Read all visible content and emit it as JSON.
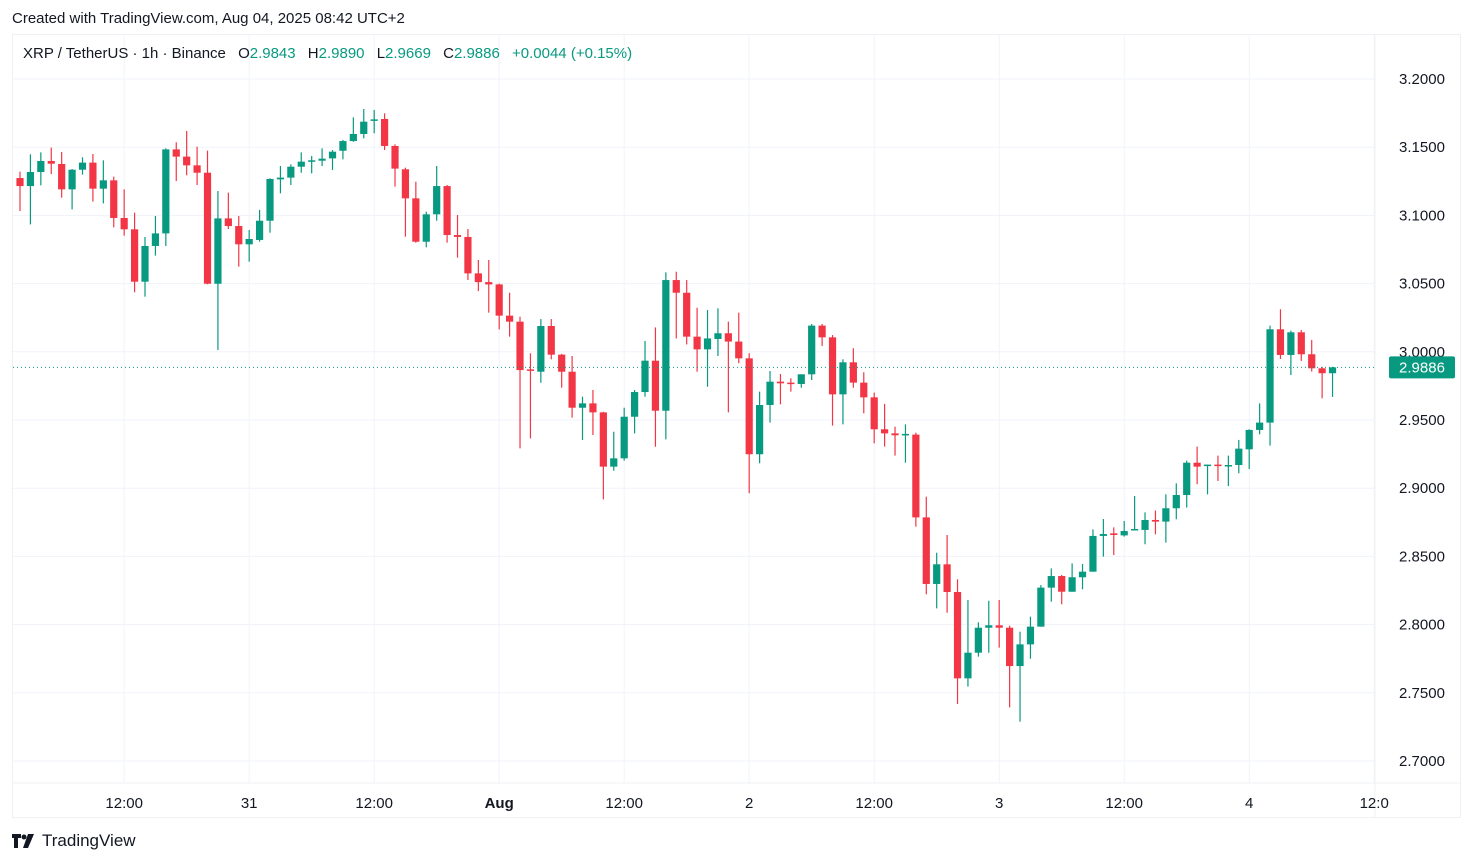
{
  "header": {
    "created_text": "Created with TradingView.com, Aug 04, 2025 08:42 UTC+2"
  },
  "legend": {
    "symbol": "XRP / TetherUS · 1h · Binance",
    "o_label": "O",
    "o": "2.9843",
    "h_label": "H",
    "h": "2.9890",
    "l_label": "L",
    "l": "2.9669",
    "c_label": "C",
    "c": "2.9886",
    "change": "+0.0044 (+0.15%)"
  },
  "footer": {
    "brand": "TradingView"
  },
  "colors": {
    "up": "#089981",
    "down": "#F23645",
    "grid": "#f0f3fa",
    "text": "#131722"
  },
  "chart_data": {
    "type": "candlestick",
    "interval": "1h",
    "ylim": [
      2.68,
      3.215
    ],
    "y_ticks": [
      "3.2000",
      "3.1500",
      "3.1000",
      "3.0500",
      "3.0000",
      "2.9500",
      "2.9000",
      "2.8500",
      "2.8000",
      "2.7500",
      "2.7000"
    ],
    "x_ticks": [
      {
        "t": "07-30 12:00",
        "label": "12:00"
      },
      {
        "t": "07-31 00:00",
        "label": "31"
      },
      {
        "t": "07-31 12:00",
        "label": "12:00"
      },
      {
        "t": "08-01 00:00",
        "label": "Aug"
      },
      {
        "t": "08-01 12:00",
        "label": "12:00"
      },
      {
        "t": "08-02 00:00",
        "label": "2"
      },
      {
        "t": "08-02 12:00",
        "label": "12:00"
      },
      {
        "t": "08-03 00:00",
        "label": "3"
      },
      {
        "t": "08-03 12:00",
        "label": "12:00"
      },
      {
        "t": "08-04 00:00",
        "label": "4"
      },
      {
        "t": "08-04 12:00",
        "label": "12:0"
      }
    ],
    "last_price": "2.9886",
    "grid": true,
    "candles_format": [
      "time",
      "open",
      "high",
      "low",
      "close"
    ],
    "candles": [
      [
        "07-30 02:00",
        3.1274,
        3.1321,
        3.1032,
        3.1215
      ],
      [
        "07-30 03:00",
        3.1215,
        3.1448,
        3.0934,
        3.1318
      ],
      [
        "07-30 04:00",
        3.1318,
        3.1462,
        3.122,
        3.1399
      ],
      [
        "07-30 05:00",
        3.1399,
        3.1497,
        3.1303,
        3.1379
      ],
      [
        "07-30 06:00",
        3.1377,
        3.1465,
        3.113,
        3.1191
      ],
      [
        "07-30 07:00",
        3.1191,
        3.134,
        3.1044,
        3.1335
      ],
      [
        "07-30 08:00",
        3.1335,
        3.1426,
        3.1299,
        3.1387
      ],
      [
        "07-30 09:00",
        3.1387,
        3.145,
        3.1101,
        3.1196
      ],
      [
        "07-30 10:00",
        3.1196,
        3.1404,
        3.1088,
        3.1257
      ],
      [
        "07-30 11:00",
        3.1257,
        3.1284,
        3.0912,
        3.0981
      ],
      [
        "07-30 12:00",
        3.0981,
        3.1191,
        3.0851,
        3.0898
      ],
      [
        "07-30 13:00",
        3.0898,
        3.102,
        3.0436,
        3.0514
      ],
      [
        "07-30 14:00",
        3.0514,
        3.0842,
        3.0404,
        3.0776
      ],
      [
        "07-30 15:00",
        3.0776,
        3.0996,
        3.0705,
        3.0868
      ],
      [
        "07-30 16:00",
        3.0868,
        3.1492,
        3.0776,
        3.1484
      ],
      [
        "07-30 17:00",
        3.1484,
        3.1536,
        3.1252,
        3.1431
      ],
      [
        "07-30 18:00",
        3.1431,
        3.1619,
        3.1294,
        3.1367
      ],
      [
        "07-30 19:00",
        3.1367,
        3.1504,
        3.1223,
        3.1313
      ],
      [
        "07-30 20:00",
        3.1313,
        3.1475,
        3.0495,
        3.0499
      ],
      [
        "07-30 21:00",
        3.0499,
        3.1179,
        3.0013,
        3.0978
      ],
      [
        "07-30 22:00",
        3.0978,
        3.1167,
        3.09,
        3.0922
      ],
      [
        "07-30 23:00",
        3.0922,
        3.0996,
        3.0624,
        3.0788
      ],
      [
        "07-31 00:00",
        3.0788,
        3.0893,
        3.0661,
        3.0827
      ],
      [
        "07-31 01:00",
        3.082,
        3.104,
        3.0807,
        3.0961
      ],
      [
        "07-31 02:00",
        3.0961,
        3.1272,
        3.0873,
        3.1267
      ],
      [
        "07-31 03:00",
        3.1264,
        3.1362,
        3.1162,
        3.1277
      ],
      [
        "07-31 04:00",
        3.1277,
        3.1374,
        3.1223,
        3.1357
      ],
      [
        "07-31 05:00",
        3.1357,
        3.1462,
        3.1313,
        3.1394
      ],
      [
        "07-31 06:00",
        3.1399,
        3.1435,
        3.1308,
        3.1404
      ],
      [
        "07-31 07:00",
        3.1401,
        3.1492,
        3.1362,
        3.1416
      ],
      [
        "07-31 08:00",
        3.1418,
        3.1479,
        3.1333,
        3.1467
      ],
      [
        "07-31 09:00",
        3.1474,
        3.1553,
        3.1411,
        3.1545
      ],
      [
        "07-31 10:00",
        3.1545,
        3.1719,
        3.154,
        3.1597
      ],
      [
        "07-31 11:00",
        3.1597,
        3.178,
        3.1565,
        3.1687
      ],
      [
        "07-31 12:00",
        3.1694,
        3.1773,
        3.1602,
        3.1704
      ],
      [
        "07-31 13:00",
        3.1707,
        3.1748,
        3.1479,
        3.1509
      ],
      [
        "07-31 14:00",
        3.1509,
        3.1521,
        3.1211,
        3.1343
      ],
      [
        "07-31 15:00",
        3.1338,
        3.135,
        3.0844,
        3.1125
      ],
      [
        "07-31 16:00",
        3.1125,
        3.1247,
        3.08,
        3.0807
      ],
      [
        "07-31 17:00",
        3.0807,
        3.1027,
        3.0766,
        3.1008
      ],
      [
        "07-31 18:00",
        3.1008,
        3.1362,
        3.0961,
        3.1215
      ],
      [
        "07-31 19:00",
        3.1215,
        3.1223,
        3.08,
        3.0856
      ],
      [
        "07-31 20:00",
        3.0856,
        3.1003,
        3.069,
        3.0842
      ],
      [
        "07-31 21:00",
        3.0842,
        3.09,
        3.0526,
        3.0575
      ],
      [
        "07-31 22:00",
        3.0575,
        3.0673,
        3.0445,
        3.0511
      ],
      [
        "07-31 23:00",
        3.0511,
        3.0673,
        3.0287,
        3.0494
      ],
      [
        "08-01 00:00",
        3.0494,
        3.05,
        3.0164,
        3.0265
      ],
      [
        "08-01 01:00",
        3.0265,
        3.0433,
        3.0111,
        3.0221
      ],
      [
        "08-01 02:00",
        3.0221,
        3.0257,
        2.9292,
        2.9866
      ],
      [
        "08-01 03:00",
        2.9871,
        2.9989,
        2.9365,
        2.9861
      ],
      [
        "08-01 04:00",
        2.9854,
        3.024,
        2.9773,
        3.0189
      ],
      [
        "08-01 05:00",
        3.0189,
        3.024,
        2.9945,
        2.9979
      ],
      [
        "08-01 06:00",
        2.9979,
        2.9985,
        2.9737,
        2.9854
      ],
      [
        "08-01 07:00",
        2.9854,
        2.9969,
        2.9517,
        2.959
      ],
      [
        "08-01 08:00",
        2.959,
        2.9671,
        2.9353,
        2.9622
      ],
      [
        "08-01 09:00",
        2.9622,
        2.972,
        2.939,
        2.9556
      ],
      [
        "08-01 10:00",
        2.9556,
        2.956,
        2.8918,
        2.9158
      ],
      [
        "08-01 11:00",
        2.9158,
        2.9414,
        2.9128,
        2.9219
      ],
      [
        "08-01 12:00",
        2.9219,
        2.959,
        2.9202,
        2.9524
      ],
      [
        "08-01 13:00",
        2.9524,
        2.972,
        2.9402,
        2.9705
      ],
      [
        "08-01 14:00",
        2.9705,
        3.0079,
        2.9671,
        2.9935
      ],
      [
        "08-01 15:00",
        2.9935,
        3.0179,
        2.9304,
        2.9568
      ],
      [
        "08-01 16:00",
        2.9568,
        3.0582,
        2.9358,
        3.0526
      ],
      [
        "08-01 17:00",
        3.0526,
        3.0587,
        3.0098,
        3.0433
      ],
      [
        "08-01 18:00",
        3.0433,
        3.0526,
        3.0054,
        3.0111
      ],
      [
        "08-01 19:00",
        3.0111,
        3.0323,
        2.9854,
        3.0018
      ],
      [
        "08-01 20:00",
        3.0018,
        3.0306,
        2.9744,
        3.0098
      ],
      [
        "08-01 21:00",
        3.0094,
        3.0319,
        2.9969,
        3.0136
      ],
      [
        "08-01 22:00",
        3.0136,
        3.0221,
        2.9556,
        3.0075
      ],
      [
        "08-01 23:00",
        3.0075,
        3.0287,
        2.9916,
        2.9952
      ],
      [
        "08-02 00:00",
        2.9952,
        2.9989,
        2.8963,
        2.9249
      ],
      [
        "08-02 01:00",
        2.9249,
        2.9708,
        2.9183,
        2.961
      ],
      [
        "08-02 02:00",
        2.961,
        2.9859,
        2.9481,
        2.9781
      ],
      [
        "08-02 03:00",
        2.9781,
        2.9837,
        2.9615,
        2.9769
      ],
      [
        "08-02 04:00",
        2.9774,
        2.9806,
        2.9708,
        2.9769
      ],
      [
        "08-02 05:00",
        2.9764,
        2.9835,
        2.9737,
        2.9835
      ],
      [
        "08-02 06:00",
        2.9835,
        3.0204,
        2.9793,
        3.0192
      ],
      [
        "08-02 07:00",
        3.0192,
        3.0204,
        3.0043,
        3.0106
      ],
      [
        "08-02 08:00",
        3.0106,
        3.0123,
        2.9459,
        2.9688
      ],
      [
        "08-02 09:00",
        2.9688,
        2.9945,
        2.9468,
        2.9923
      ],
      [
        "08-02 10:00",
        2.9923,
        3.0026,
        2.9737,
        2.9774
      ],
      [
        "08-02 11:00",
        2.9774,
        2.985,
        2.9549,
        2.9666
      ],
      [
        "08-02 12:00",
        2.9666,
        2.9701,
        2.9329,
        2.9432
      ],
      [
        "08-02 13:00",
        2.9432,
        2.9618,
        2.9305,
        2.9402
      ],
      [
        "08-02 14:00",
        2.9402,
        2.9451,
        2.9239,
        2.9388
      ],
      [
        "08-02 15:00",
        2.9393,
        2.9468,
        2.9187,
        2.9398
      ],
      [
        "08-02 16:00",
        2.9393,
        2.9407,
        2.8718,
        2.8786
      ],
      [
        "08-02 17:00",
        2.8786,
        2.8938,
        2.8222,
        2.8298
      ],
      [
        "08-02 18:00",
        2.8298,
        2.8527,
        2.8119,
        2.8442
      ],
      [
        "08-02 19:00",
        2.8442,
        2.8657,
        2.8087,
        2.8239
      ],
      [
        "08-02 20:00",
        2.8239,
        2.8332,
        2.7418,
        2.7606
      ],
      [
        "08-02 21:00",
        2.7606,
        2.818,
        2.7545,
        2.7794
      ],
      [
        "08-02 22:00",
        2.7794,
        2.8017,
        2.7765,
        2.7977
      ],
      [
        "08-02 23:00",
        2.7977,
        2.8175,
        2.7794,
        2.7995
      ],
      [
        "08-03 00:00",
        2.7995,
        2.818,
        2.7831,
        2.7977
      ],
      [
        "08-03 01:00",
        2.7977,
        2.7992,
        2.7393,
        2.7696
      ],
      [
        "08-03 02:00",
        2.7696,
        2.7948,
        2.7288,
        2.7855
      ],
      [
        "08-03 03:00",
        2.7855,
        2.8058,
        2.775,
        2.7985
      ],
      [
        "08-03 04:00",
        2.7985,
        2.829,
        2.7985,
        2.8271
      ],
      [
        "08-03 05:00",
        2.8271,
        2.8412,
        2.8168,
        2.8356
      ],
      [
        "08-03 06:00",
        2.8356,
        2.8364,
        2.8149,
        2.8241
      ],
      [
        "08-03 07:00",
        2.8241,
        2.8449,
        2.8241,
        2.8347
      ],
      [
        "08-03 08:00",
        2.8347,
        2.8444,
        2.8259,
        2.8388
      ],
      [
        "08-03 09:00",
        2.8388,
        2.8698,
        2.8388,
        2.865
      ],
      [
        "08-03 10:00",
        2.865,
        2.8774,
        2.8498,
        2.8664
      ],
      [
        "08-03 11:00",
        2.8669,
        2.8713,
        2.851,
        2.8657
      ],
      [
        "08-03 12:00",
        2.8654,
        2.876,
        2.8645,
        2.8686
      ],
      [
        "08-03 13:00",
        2.8694,
        2.8943,
        2.869,
        2.8701
      ],
      [
        "08-03 14:00",
        2.8694,
        2.8823,
        2.8589,
        2.8767
      ],
      [
        "08-03 15:00",
        2.8767,
        2.8836,
        2.8662,
        2.8755
      ],
      [
        "08-03 16:00",
        2.8755,
        2.8955,
        2.8601,
        2.8853
      ],
      [
        "08-03 17:00",
        2.8853,
        2.9036,
        2.8772,
        2.895
      ],
      [
        "08-03 18:00",
        2.895,
        2.9202,
        2.8858,
        2.9187
      ],
      [
        "08-03 19:00",
        2.9187,
        2.9305,
        2.9029,
        2.9158
      ],
      [
        "08-03 20:00",
        2.9168,
        2.9173,
        2.8955,
        2.9173
      ],
      [
        "08-03 21:00",
        2.9173,
        2.9239,
        2.9053,
        2.9165
      ],
      [
        "08-03 22:00",
        2.9163,
        2.9239,
        2.9016,
        2.917
      ],
      [
        "08-03 23:00",
        2.917,
        2.9354,
        2.9109,
        2.929
      ],
      [
        "08-04 00:00",
        2.9285,
        2.9432,
        2.9141,
        2.9427
      ],
      [
        "08-04 01:00",
        2.9427,
        2.9622,
        2.9395,
        2.9481
      ],
      [
        "08-04 02:00",
        2.9481,
        3.0192,
        2.9312,
        3.0165
      ],
      [
        "08-04 03:00",
        3.0165,
        3.0312,
        2.9947,
        2.9977
      ],
      [
        "08-04 04:00",
        2.9977,
        3.0155,
        2.983,
        3.0143
      ],
      [
        "08-04 05:00",
        3.0143,
        3.016,
        2.9933,
        2.9982
      ],
      [
        "08-04 06:00",
        2.9982,
        3.0087,
        2.9855,
        2.9879
      ],
      [
        "08-04 07:00",
        2.9879,
        2.989,
        2.9659,
        2.9843
      ],
      [
        "08-04 08:00",
        2.9843,
        2.989,
        2.9669,
        2.9886
      ]
    ]
  }
}
